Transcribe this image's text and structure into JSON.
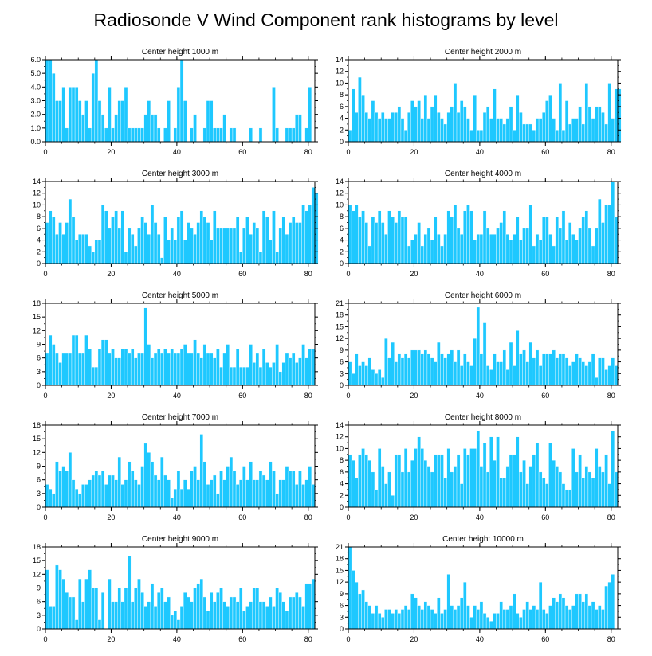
{
  "title": "Radiosonde V Wind Component rank histograms by level",
  "colors": {
    "bar": "#1ec8ff",
    "bar_edge": "#ffffff",
    "axis": "#000000"
  },
  "chart_data": [
    {
      "type": "bar",
      "title": "Center height 1000 m",
      "xlim": [
        0,
        82
      ],
      "ylim": [
        0,
        6
      ],
      "yticks": [
        0,
        1,
        2,
        3,
        4,
        5,
        6
      ],
      "ytick_labels": [
        "0.0",
        "1.0",
        "2.0",
        "3.0",
        "4.0",
        "5.0",
        "6.0"
      ],
      "xticks": [
        0,
        20,
        40,
        60,
        80
      ],
      "xtick_labels": [
        "0",
        "20",
        "40",
        "60",
        "80"
      ],
      "values": [
        6,
        6,
        5,
        3,
        3,
        4,
        1,
        4,
        4,
        4,
        3,
        2,
        3,
        1,
        5,
        6,
        3,
        2,
        1,
        4,
        1,
        2,
        3,
        3,
        4,
        1,
        1,
        1,
        1,
        1,
        2,
        3,
        2,
        2,
        1,
        0,
        1,
        3,
        0,
        1,
        4,
        6,
        3,
        0,
        1,
        2,
        0,
        0,
        1,
        3,
        3,
        1,
        1,
        1,
        2,
        0,
        1,
        1,
        0,
        0,
        0,
        0,
        1,
        0,
        0,
        1,
        0,
        0,
        0,
        4,
        1,
        0,
        0,
        1,
        1,
        1,
        2,
        2,
        0,
        1,
        4
      ]
    },
    {
      "type": "bar",
      "title": "Center height 2000 m",
      "xlim": [
        0,
        82
      ],
      "ylim": [
        0,
        14
      ],
      "yticks": [
        0,
        2,
        4,
        6,
        8,
        10,
        12,
        14
      ],
      "ytick_labels": [
        "0",
        "2",
        "4",
        "6",
        "8",
        "10",
        "12",
        "14"
      ],
      "xticks": [
        0,
        20,
        40,
        60,
        80
      ],
      "xtick_labels": [
        "0",
        "20",
        "40",
        "60",
        "80"
      ],
      "values": [
        2,
        9,
        5,
        11,
        8,
        5,
        4,
        7,
        5,
        4,
        5,
        4,
        4,
        5,
        5,
        6,
        4,
        2,
        5,
        7,
        6,
        7,
        4,
        8,
        4,
        6,
        8,
        5,
        4,
        3,
        5,
        6,
        10,
        5,
        7,
        6,
        4,
        2,
        8,
        2,
        2,
        5,
        6,
        4,
        9,
        4,
        4,
        3,
        4,
        6,
        2,
        8,
        5,
        3,
        3,
        3,
        2,
        4,
        4,
        5,
        7,
        8,
        4,
        2,
        10,
        2,
        7,
        3,
        4,
        4,
        6,
        3,
        10,
        6,
        4,
        6,
        6,
        5,
        3,
        10,
        4,
        9,
        9
      ]
    },
    {
      "type": "bar",
      "title": "Center height 3000 m",
      "xlim": [
        0,
        82
      ],
      "ylim": [
        0,
        14
      ],
      "yticks": [
        0,
        2,
        4,
        6,
        8,
        10,
        12,
        14
      ],
      "ytick_labels": [
        "0",
        "2",
        "4",
        "6",
        "8",
        "10",
        "12",
        "14"
      ],
      "xticks": [
        0,
        20,
        40,
        60,
        80
      ],
      "xtick_labels": [
        "0",
        "20",
        "40",
        "60",
        "80"
      ],
      "values": [
        7,
        9,
        8,
        5,
        7,
        5,
        7,
        11,
        8,
        4,
        5,
        5,
        5,
        3,
        2,
        4,
        4,
        10,
        9,
        6,
        8,
        9,
        6,
        9,
        2,
        6,
        5,
        3,
        6,
        8,
        7,
        5,
        10,
        7,
        5,
        1,
        8,
        4,
        6,
        4,
        8,
        9,
        4,
        7,
        6,
        5,
        7,
        9,
        8,
        7,
        4,
        9,
        6,
        6,
        6,
        6,
        6,
        6,
        8,
        2,
        6,
        8,
        5,
        7,
        6,
        2,
        9,
        8,
        4,
        9,
        2,
        6,
        8,
        5,
        7,
        8,
        7,
        7,
        10,
        9,
        10,
        13,
        12
      ]
    },
    {
      "type": "bar",
      "title": "Center height 4000 m",
      "xlim": [
        0,
        82
      ],
      "ylim": [
        0,
        14
      ],
      "yticks": [
        0,
        2,
        4,
        6,
        8,
        10,
        12,
        14
      ],
      "ytick_labels": [
        "0",
        "2",
        "4",
        "6",
        "8",
        "10",
        "12",
        "14"
      ],
      "xticks": [
        0,
        20,
        40,
        60,
        80
      ],
      "xtick_labels": [
        "0",
        "20",
        "40",
        "60",
        "80"
      ],
      "values": [
        10,
        9,
        10,
        8,
        9,
        7,
        3,
        8,
        7,
        9,
        7,
        5,
        9,
        8,
        7,
        9,
        8,
        8,
        3,
        4,
        5,
        7,
        3,
        5,
        6,
        4,
        8,
        5,
        3,
        5,
        9,
        8,
        10,
        6,
        5,
        9,
        10,
        9,
        4,
        5,
        5,
        9,
        6,
        5,
        5,
        6,
        7,
        9,
        5,
        4,
        5,
        8,
        4,
        6,
        6,
        10,
        3,
        5,
        4,
        8,
        8,
        5,
        3,
        8,
        6,
        9,
        4,
        7,
        5,
        4,
        6,
        8,
        9,
        6,
        3,
        6,
        11,
        7,
        10,
        10,
        14,
        8
      ]
    },
    {
      "type": "bar",
      "title": "Center height 5000 m",
      "xlim": [
        0,
        82
      ],
      "ylim": [
        0,
        18
      ],
      "yticks": [
        0,
        3,
        6,
        9,
        12,
        15,
        18
      ],
      "ytick_labels": [
        "0",
        "3",
        "6",
        "9",
        "12",
        "15",
        "18"
      ],
      "xticks": [
        0,
        20,
        40,
        60,
        80
      ],
      "xtick_labels": [
        "0",
        "20",
        "40",
        "60",
        "80"
      ],
      "values": [
        7,
        11,
        9,
        7,
        5,
        7,
        7,
        7,
        11,
        11,
        7,
        7,
        11,
        8,
        4,
        4,
        8,
        10,
        10,
        7,
        8,
        6,
        6,
        8,
        8,
        7,
        8,
        6,
        7,
        7,
        17,
        9,
        6,
        7,
        8,
        7,
        8,
        7,
        8,
        7,
        7,
        8,
        9,
        7,
        7,
        10,
        7,
        6,
        9,
        7,
        7,
        6,
        8,
        4,
        7,
        9,
        4,
        4,
        8,
        4,
        4,
        4,
        9,
        5,
        7,
        4,
        8,
        5,
        4,
        5,
        9,
        3,
        5,
        7,
        6,
        7,
        5,
        6,
        9,
        6,
        8,
        8
      ]
    },
    {
      "type": "bar",
      "title": "Center height 6000 m",
      "xlim": [
        0,
        82
      ],
      "ylim": [
        0,
        21
      ],
      "yticks": [
        0,
        3,
        6,
        9,
        12,
        15,
        18,
        21
      ],
      "ytick_labels": [
        "0",
        "3",
        "6",
        "9",
        "12",
        "15",
        "18",
        "21"
      ],
      "xticks": [
        0,
        20,
        40,
        60,
        80
      ],
      "xtick_labels": [
        "0",
        "20",
        "40",
        "60",
        "80"
      ],
      "values": [
        6,
        3,
        8,
        5,
        6,
        5,
        7,
        4,
        3,
        4,
        2,
        12,
        7,
        11,
        6,
        8,
        7,
        8,
        7,
        9,
        9,
        9,
        8,
        9,
        8,
        7,
        6,
        11,
        8,
        7,
        8,
        9,
        6,
        9,
        5,
        8,
        6,
        5,
        12,
        20,
        8,
        16,
        5,
        4,
        8,
        6,
        6,
        9,
        4,
        11,
        5,
        14,
        8,
        9,
        6,
        11,
        7,
        9,
        5,
        8,
        8,
        8,
        9,
        7,
        8,
        8,
        7,
        5,
        6,
        8,
        7,
        6,
        5,
        6,
        8,
        2,
        7,
        7,
        4,
        5,
        7,
        5
      ]
    },
    {
      "type": "bar",
      "title": "Center height 7000 m",
      "xlim": [
        0,
        82
      ],
      "ylim": [
        0,
        18
      ],
      "yticks": [
        0,
        3,
        6,
        9,
        12,
        15,
        18
      ],
      "ytick_labels": [
        "0",
        "3",
        "6",
        "9",
        "12",
        "15",
        "18"
      ],
      "xticks": [
        0,
        20,
        40,
        60,
        80
      ],
      "xtick_labels": [
        "0",
        "20",
        "40",
        "60",
        "80"
      ],
      "values": [
        5,
        4,
        3,
        10,
        8,
        9,
        8,
        12,
        6,
        4,
        3,
        5,
        5,
        6,
        7,
        8,
        7,
        8,
        5,
        7,
        7,
        6,
        11,
        5,
        6,
        10,
        8,
        6,
        5,
        9,
        14,
        12,
        10,
        7,
        6,
        11,
        7,
        6,
        2,
        4,
        8,
        4,
        6,
        4,
        8,
        9,
        6,
        16,
        10,
        5,
        6,
        7,
        3,
        8,
        6,
        9,
        11,
        8,
        5,
        6,
        9,
        6,
        10,
        6,
        6,
        8,
        7,
        6,
        10,
        8,
        3,
        6,
        6,
        9,
        8,
        8,
        5,
        8,
        5,
        6,
        9,
        5
      ]
    },
    {
      "type": "bar",
      "title": "Center height 8000 m",
      "xlim": [
        0,
        82
      ],
      "ylim": [
        0,
        14
      ],
      "yticks": [
        0,
        2,
        4,
        6,
        8,
        10,
        12,
        14
      ],
      "ytick_labels": [
        "0",
        "2",
        "4",
        "6",
        "8",
        "10",
        "12",
        "14"
      ],
      "xticks": [
        0,
        20,
        40,
        60,
        80
      ],
      "xtick_labels": [
        "0",
        "20",
        "40",
        "60",
        "80"
      ],
      "values": [
        9,
        8,
        5,
        9,
        10,
        9,
        8,
        6,
        3,
        10,
        7,
        4,
        6,
        2,
        9,
        9,
        6,
        10,
        6,
        8,
        10,
        12,
        10,
        8,
        7,
        6,
        9,
        9,
        9,
        5,
        10,
        6,
        7,
        9,
        4,
        10,
        9,
        10,
        10,
        13,
        7,
        11,
        6,
        12,
        8,
        12,
        5,
        5,
        7,
        9,
        9,
        12,
        6,
        8,
        4,
        7,
        9,
        11,
        6,
        5,
        4,
        11,
        8,
        7,
        6,
        4,
        3,
        3,
        10,
        6,
        9,
        5,
        7,
        6,
        5,
        10,
        7,
        6,
        9,
        4,
        13,
        6
      ]
    },
    {
      "type": "bar",
      "title": "Center height 9000 m",
      "xlim": [
        0,
        82
      ],
      "ylim": [
        0,
        18
      ],
      "yticks": [
        0,
        3,
        6,
        9,
        12,
        15,
        18
      ],
      "ytick_labels": [
        "0",
        "3",
        "6",
        "9",
        "12",
        "15",
        "18"
      ],
      "xticks": [
        0,
        20,
        40,
        60,
        80
      ],
      "xtick_labels": [
        "0",
        "20",
        "40",
        "60",
        "80"
      ],
      "values": [
        13,
        5,
        5,
        14,
        13,
        11,
        8,
        7,
        7,
        2,
        11,
        6,
        11,
        13,
        9,
        9,
        2,
        8,
        0,
        11,
        6,
        6,
        9,
        6,
        9,
        16,
        6,
        9,
        11,
        8,
        5,
        6,
        10,
        5,
        8,
        9,
        6,
        7,
        3,
        4,
        2,
        5,
        8,
        7,
        6,
        9,
        10,
        11,
        7,
        4,
        8,
        6,
        8,
        9,
        6,
        5,
        7,
        7,
        6,
        9,
        4,
        5,
        6,
        9,
        9,
        6,
        6,
        5,
        7,
        5,
        9,
        8,
        6,
        4,
        7,
        7,
        8,
        7,
        5,
        10,
        10,
        11
      ]
    },
    {
      "type": "bar",
      "title": "Center height 10000 m",
      "xlim": [
        0,
        82
      ],
      "ylim": [
        0,
        21
      ],
      "yticks": [
        0,
        3,
        6,
        9,
        12,
        15,
        18,
        21
      ],
      "ytick_labels": [
        "0",
        "3",
        "6",
        "9",
        "12",
        "15",
        "18",
        "21"
      ],
      "xticks": [
        0,
        20,
        40,
        60,
        80
      ],
      "xtick_labels": [
        "0",
        "20",
        "40",
        "60",
        "80"
      ],
      "values": [
        21,
        15,
        12,
        9,
        10,
        7,
        6,
        4,
        6,
        4,
        3,
        5,
        5,
        4,
        5,
        4,
        5,
        6,
        5,
        9,
        8,
        6,
        5,
        7,
        6,
        5,
        4,
        8,
        4,
        5,
        14,
        6,
        5,
        6,
        8,
        12,
        6,
        3,
        6,
        5,
        7,
        4,
        3,
        2,
        4,
        4,
        7,
        5,
        5,
        6,
        9,
        4,
        3,
        5,
        7,
        5,
        6,
        5,
        12,
        5,
        4,
        6,
        8,
        7,
        9,
        8,
        6,
        5,
        6,
        9,
        9,
        7,
        9,
        6,
        7,
        5,
        6,
        5,
        11,
        12,
        14
      ]
    }
  ]
}
